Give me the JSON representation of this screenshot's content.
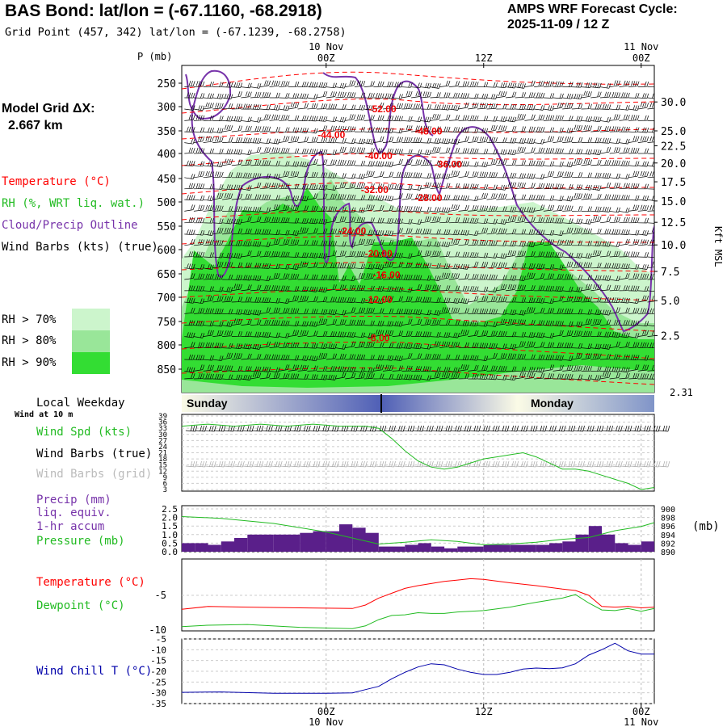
{
  "header": {
    "title": "BAS Bond:  lat/lon = (-67.1160, -68.2918)",
    "subtitle": "Grid Point (457, 342) lat/lon = (-67.1239, -68.2758)",
    "cycle_line1": "AMPS WRF Forecast Cycle:",
    "cycle_line2": "2025-11-09 / 12  Z",
    "grid_line1": "Model Grid ΔX:",
    "grid_line2": "2.667 km"
  },
  "colors": {
    "temperature": "#ff0000",
    "rh": "#22bb22",
    "cloud": "#7733aa",
    "rh70": "#ccf5cc",
    "rh80": "#99e699",
    "rh90": "#33dd33",
    "windchill": "#0000aa",
    "precip_bar": "#5a1f8a"
  },
  "top_axis": {
    "p_label": "P (mb)",
    "kft_label": "Kft MSL",
    "time_labels": [
      {
        "hour": 12,
        "line1": "10 Nov",
        "line2": "00Z"
      },
      {
        "hour": 24,
        "line1": "",
        "line2": "12Z"
      },
      {
        "hour": 36,
        "line1": "11 Nov",
        "line2": "00Z"
      }
    ]
  },
  "bottom_axis": {
    "time_labels": [
      {
        "hour": 12,
        "line1": "00Z",
        "line2": "10 Nov"
      },
      {
        "hour": 24,
        "line1": "12Z",
        "line2": ""
      },
      {
        "hour": 36,
        "line1": "00Z",
        "line2": "11 Nov"
      }
    ]
  },
  "legend": {
    "temperature": "Temperature (°C)",
    "rh": "RH (%, WRT liq. wat.)",
    "cloud": "Cloud/Precip Outline",
    "wind": "Wind Barbs (kts) (true)",
    "rh70": "RH > 70%",
    "rh80": "RH > 80%",
    "rh90": "RH > 90%"
  },
  "weekday_band": {
    "label": "Local Weekday",
    "day1": "Sunday",
    "day2": "Monday",
    "wind_at": "Wind at 10 m",
    "right_value": "2.31"
  },
  "panel_wind": {
    "spd_label": "Wind Spd (kts)",
    "barbs_true": "Wind Barbs (true)",
    "barbs_grid": "Wind Barbs (grid)"
  },
  "panel_precip": {
    "line1": "Precip (mm)",
    "line2": "liq. equiv.",
    "line3": "1-hr accum",
    "pressure": "Pressure (mb)",
    "right_unit": "(mb)"
  },
  "panel_temp": {
    "temp": "Temperature (°C)",
    "dew": "Dewpoint (°C)"
  },
  "panel_chill": {
    "label": "Wind Chill T (°C)"
  },
  "chart_data": [
    {
      "type": "heatmap",
      "title": "Vertical cross-section (time-height)",
      "xlabel": "",
      "ylabel": "P (mb)",
      "y2label": "Kft MSL",
      "x_range_hours": [
        1,
        37
      ],
      "pressure_ticks": [
        250,
        300,
        350,
        400,
        450,
        500,
        550,
        600,
        650,
        700,
        750,
        800,
        850
      ],
      "kft_ticks": [
        30.0,
        25.0,
        22.5,
        20.0,
        17.5,
        15.0,
        12.5,
        10.0,
        7.5,
        5.0,
        2.5
      ],
      "kft_tick_text": [
        "30.0",
        "25.0",
        "22.5",
        "20.0",
        "17.5",
        "15.0",
        "12.5",
        "10.0",
        "7.5",
        "5.0",
        "2.5"
      ],
      "kft_tick_p": [
        290,
        350,
        383,
        419,
        457,
        498,
        542,
        590,
        645,
        707,
        780
      ],
      "temperature_contour_labels": [
        {
          "text": "-52.00",
          "x": 16.3,
          "p": 305
        },
        {
          "text": "-48.00",
          "x": 19.8,
          "p": 351
        },
        {
          "text": "-44.00",
          "x": 12.4,
          "p": 359
        },
        {
          "text": "-40.00",
          "x": 16.0,
          "p": 405
        },
        {
          "text": "-36.00",
          "x": 21.3,
          "p": 422
        },
        {
          "text": "-32.00",
          "x": 15.7,
          "p": 474
        },
        {
          "text": "-28.00",
          "x": 19.8,
          "p": 491
        },
        {
          "text": "-24.00",
          "x": 14.0,
          "p": 560
        },
        {
          "text": "-20.00",
          "x": 16.0,
          "p": 608
        },
        {
          "text": "-16.00",
          "x": 16.6,
          "p": 653
        },
        {
          "text": "-12.00",
          "x": 16.0,
          "p": 705
        },
        {
          "text": "-8.00",
          "x": 16.0,
          "p": 785
        }
      ]
    },
    {
      "type": "line",
      "title": "",
      "xlabel": "",
      "ylabel": "Wind Spd (kts)",
      "ylim": [
        3,
        39
      ],
      "yticks": [
        39,
        36,
        33,
        30,
        27,
        24,
        21,
        18,
        15,
        12,
        9,
        6,
        3
      ],
      "x": [
        1,
        3,
        5,
        7,
        9,
        11,
        13,
        15,
        16,
        17,
        18,
        19,
        20,
        21,
        22,
        23,
        24,
        25,
        26,
        27,
        28,
        29,
        30,
        31,
        32,
        33,
        34,
        35,
        36,
        37
      ],
      "series": [
        {
          "name": "Wind Spd (kts)",
          "values": [
            34,
            35,
            34,
            35,
            34,
            35,
            34,
            34,
            33,
            28,
            22,
            17,
            14,
            13,
            14,
            16,
            18,
            19,
            20,
            21,
            19,
            16,
            13,
            13,
            12,
            10,
            8,
            6,
            3,
            4
          ]
        }
      ]
    },
    {
      "type": "bar",
      "title": "",
      "xlabel": "",
      "ylabel": "Precip (mm)",
      "y2label": "Pressure (mb)",
      "ylim": [
        0,
        2.5
      ],
      "yticks": [
        2.5,
        2.0,
        1.5,
        1.0,
        0.5,
        0.0
      ],
      "y2lim": [
        890,
        900
      ],
      "y2ticks": [
        900,
        898,
        896,
        894,
        892,
        890
      ],
      "x": [
        1,
        2,
        3,
        4,
        5,
        6,
        7,
        8,
        9,
        10,
        11,
        12,
        13,
        14,
        15,
        16,
        17,
        18,
        19,
        20,
        21,
        22,
        23,
        24,
        25,
        26,
        27,
        28,
        29,
        30,
        31,
        32,
        33,
        34,
        35,
        36
      ],
      "series": [
        {
          "name": "Precip (mm)",
          "type": "bar",
          "values": [
            0.5,
            0.5,
            0.4,
            0.6,
            0.8,
            1.0,
            1.0,
            1.0,
            1.0,
            1.1,
            1.2,
            1.2,
            1.6,
            1.4,
            1.1,
            0.3,
            0.3,
            0.4,
            0.5,
            0.3,
            0.2,
            0.3,
            0.3,
            0.4,
            0.4,
            0.4,
            0.4,
            0.4,
            0.5,
            0.6,
            1.0,
            1.5,
            1.0,
            0.5,
            0.4,
            0.6
          ]
        },
        {
          "name": "Pressure (mb)",
          "type": "line",
          "x": [
            1,
            4,
            8,
            12,
            16,
            18,
            20,
            22,
            24,
            26,
            28,
            30,
            32,
            34,
            36,
            37
          ],
          "values": [
            898.2,
            897.8,
            896.6,
            894.6,
            891.8,
            892.2,
            892.8,
            892.4,
            891.6,
            891.8,
            892.2,
            892.9,
            893.3,
            894.9,
            895.9,
            896.8
          ]
        }
      ]
    },
    {
      "type": "line",
      "title": "",
      "xlabel": "",
      "ylabel": "",
      "ylim": [
        -10,
        0
      ],
      "yticks": [
        -5,
        -10
      ],
      "x": [
        1,
        3,
        6,
        10,
        14,
        15,
        16,
        17,
        18,
        19,
        20,
        21,
        22,
        23,
        24,
        26,
        28,
        30,
        31,
        32,
        33,
        34,
        35,
        36,
        37
      ],
      "series": [
        {
          "name": "Temperature (°C)",
          "values": [
            -7.0,
            -6.6,
            -6.7,
            -6.8,
            -6.9,
            -6.4,
            -5.4,
            -4.7,
            -4.0,
            -3.6,
            -3.3,
            -3.0,
            -2.8,
            -2.6,
            -2.7,
            -3.2,
            -3.6,
            -4.1,
            -4.3,
            -5.0,
            -6.6,
            -6.7,
            -6.6,
            -6.8,
            -6.7
          ]
        },
        {
          "name": "Dewpoint (°C)",
          "values": [
            -9.5,
            -9.3,
            -9.2,
            -9.6,
            -9.8,
            -9.4,
            -8.5,
            -7.9,
            -7.8,
            -7.5,
            -7.6,
            -7.6,
            -7.4,
            -7.3,
            -7.2,
            -6.7,
            -6.0,
            -5.4,
            -4.9,
            -6.1,
            -7.1,
            -7.2,
            -6.9,
            -7.3,
            -6.9
          ]
        }
      ]
    },
    {
      "type": "line",
      "title": "",
      "xlabel": "",
      "ylabel": "Wind Chill T (°C)",
      "ylim": [
        -35,
        -5
      ],
      "yticks": [
        -5,
        -10,
        -15,
        -20,
        -25,
        -30,
        -35
      ],
      "x": [
        1,
        4,
        8,
        12,
        14,
        15,
        16,
        17,
        18,
        19,
        20,
        21,
        22,
        23,
        24,
        25,
        26,
        27,
        28,
        29,
        30,
        31,
        32,
        33,
        34,
        35,
        36,
        37
      ],
      "series": [
        {
          "name": "Wind Chill T (°C)",
          "values": [
            -29.8,
            -29.6,
            -30.2,
            -30.2,
            -30.0,
            -28.5,
            -27.0,
            -23.5,
            -20.5,
            -18.0,
            -16.5,
            -17.0,
            -19.0,
            -20.5,
            -21.5,
            -21.5,
            -20.5,
            -19.0,
            -18.5,
            -18.8,
            -18.4,
            -16.5,
            -12.5,
            -10.0,
            -7.0,
            -10.5,
            -12.0,
            -12.0
          ]
        }
      ]
    }
  ]
}
